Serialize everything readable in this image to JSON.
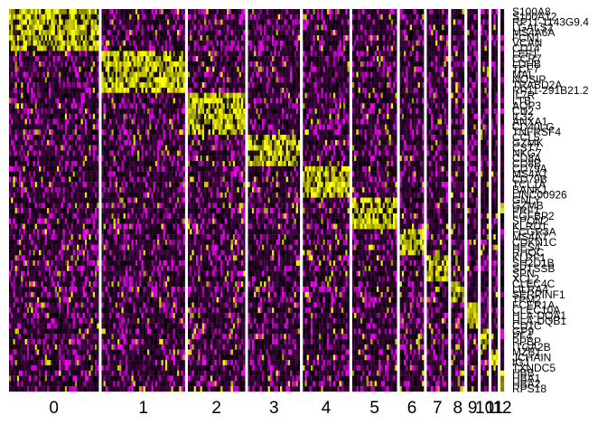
{
  "chart_data": {
    "type": "heatmap",
    "title": "",
    "xlabel": "",
    "ylabel": "",
    "legend": "none",
    "colors": {
      "low": "#ff00ff",
      "mid": "#000000",
      "high": "#ffff00",
      "separator": "#ffffff"
    },
    "clusters": [
      {
        "id": "0",
        "label": "0",
        "cells": 100
      },
      {
        "id": "1",
        "label": "1",
        "cells": 93
      },
      {
        "id": "2",
        "label": "2",
        "cells": 64
      },
      {
        "id": "3",
        "label": "3",
        "cells": 58
      },
      {
        "id": "4",
        "label": "4",
        "cells": 52
      },
      {
        "id": "5",
        "label": "5",
        "cells": 50
      },
      {
        "id": "6",
        "label": "6",
        "cells": 27
      },
      {
        "id": "7",
        "label": "7",
        "cells": 24
      },
      {
        "id": "8",
        "label": "8",
        "cells": 15
      },
      {
        "id": "9",
        "label": "9",
        "cells": 12
      },
      {
        "id": "10",
        "label": "10",
        "cells": 9
      },
      {
        "id": "11",
        "label": "11",
        "cells": 7
      },
      {
        "id": "12",
        "label": "12",
        "cells": 4
      }
    ],
    "genes": [
      {
        "label": "S100A8",
        "cluster": "0"
      },
      {
        "label": "S100A12",
        "cluster": "0"
      },
      {
        "label": "RP11-1143G9.4",
        "cluster": "0"
      },
      {
        "label": "LGALS2",
        "cluster": "0"
      },
      {
        "label": "MS4A6A",
        "cluster": "0"
      },
      {
        "label": "FCN1",
        "cluster": "0"
      },
      {
        "label": "VCAN",
        "cluster": "0"
      },
      {
        "label": "CD14",
        "cluster": "0"
      },
      {
        "label": "LEF1",
        "cluster": "1"
      },
      {
        "label": "CCR7",
        "cluster": "1"
      },
      {
        "label": "LDHB",
        "cluster": "1"
      },
      {
        "label": "TCF7",
        "cluster": "1"
      },
      {
        "label": "MAL",
        "cluster": "1"
      },
      {
        "label": "NOSIP",
        "cluster": "1"
      },
      {
        "label": "TRABD2A",
        "cluster": "1"
      },
      {
        "label": "RP11-291B21.2",
        "cluster": "1"
      },
      {
        "label": "IL7R",
        "cluster": "2"
      },
      {
        "label": "LTB",
        "cluster": "2"
      },
      {
        "label": "AQP3",
        "cluster": "2"
      },
      {
        "label": "CD2",
        "cluster": "2"
      },
      {
        "label": "IL32",
        "cluster": "2"
      },
      {
        "label": "ANXA1",
        "cluster": "2"
      },
      {
        "label": "CD40LG",
        "cluster": "2"
      },
      {
        "label": "TNFRSF4",
        "cluster": "2"
      },
      {
        "label": "CCL5",
        "cluster": "3"
      },
      {
        "label": "GZMK",
        "cluster": "3"
      },
      {
        "label": "CST7",
        "cluster": "3"
      },
      {
        "label": "NKG7",
        "cluster": "3"
      },
      {
        "label": "CD8A",
        "cluster": "3"
      },
      {
        "label": "CD8B",
        "cluster": "3"
      },
      {
        "label": "CD79A",
        "cluster": "4"
      },
      {
        "label": "MS4A1",
        "cluster": "4"
      },
      {
        "label": "CD79B",
        "cluster": "4"
      },
      {
        "label": "TCL1A",
        "cluster": "4"
      },
      {
        "label": "BANK1",
        "cluster": "4"
      },
      {
        "label": "LINC00926",
        "cluster": "4"
      },
      {
        "label": "GNLY",
        "cluster": "5"
      },
      {
        "label": "GZMB",
        "cluster": "5"
      },
      {
        "label": "PRF1",
        "cluster": "5"
      },
      {
        "label": "FGFBP2",
        "cluster": "5"
      },
      {
        "label": "SPON2",
        "cluster": "5"
      },
      {
        "label": "KLRD1",
        "cluster": "5"
      },
      {
        "label": "FCGR3A",
        "cluster": "6"
      },
      {
        "label": "MS4A7",
        "cluster": "6"
      },
      {
        "label": "CDKN1C",
        "cluster": "6"
      },
      {
        "label": "HES4",
        "cluster": "6"
      },
      {
        "label": "RHOC",
        "cluster": "6"
      },
      {
        "label": "KLRF1",
        "cluster": "7"
      },
      {
        "label": "SH2D1B",
        "cluster": "7"
      },
      {
        "label": "SPTSSB",
        "cluster": "7"
      },
      {
        "label": "SPN",
        "cluster": "7"
      },
      {
        "label": "XCL2",
        "cluster": "7"
      },
      {
        "label": "CLEC4C",
        "cluster": "8"
      },
      {
        "label": "LILRA4",
        "cluster": "8"
      },
      {
        "label": "SERPINF1",
        "cluster": "8"
      },
      {
        "label": "TPM2",
        "cluster": "8"
      },
      {
        "label": "FCER1A",
        "cluster": "9"
      },
      {
        "label": "CLEC10A",
        "cluster": "9"
      },
      {
        "label": "HLA-DQA1",
        "cluster": "9"
      },
      {
        "label": "HLA-DQB1",
        "cluster": "9"
      },
      {
        "label": "CD1C",
        "cluster": "9"
      },
      {
        "label": "GP9",
        "cluster": "10"
      },
      {
        "label": "PF4",
        "cluster": "10"
      },
      {
        "label": "PPBP",
        "cluster": "10"
      },
      {
        "label": "ITGA2B",
        "cluster": "10"
      },
      {
        "label": "MZB1",
        "cluster": "11"
      },
      {
        "label": "JCHAIN",
        "cluster": "11"
      },
      {
        "label": "IGJ",
        "cluster": "11"
      },
      {
        "label": "TXNDC5",
        "cluster": "11"
      },
      {
        "label": "HBB",
        "cluster": "12"
      },
      {
        "label": "HBA1",
        "cluster": "12"
      },
      {
        "label": "HBA2",
        "cluster": "12"
      },
      {
        "label": "RPS18",
        "cluster": "12"
      }
    ]
  }
}
